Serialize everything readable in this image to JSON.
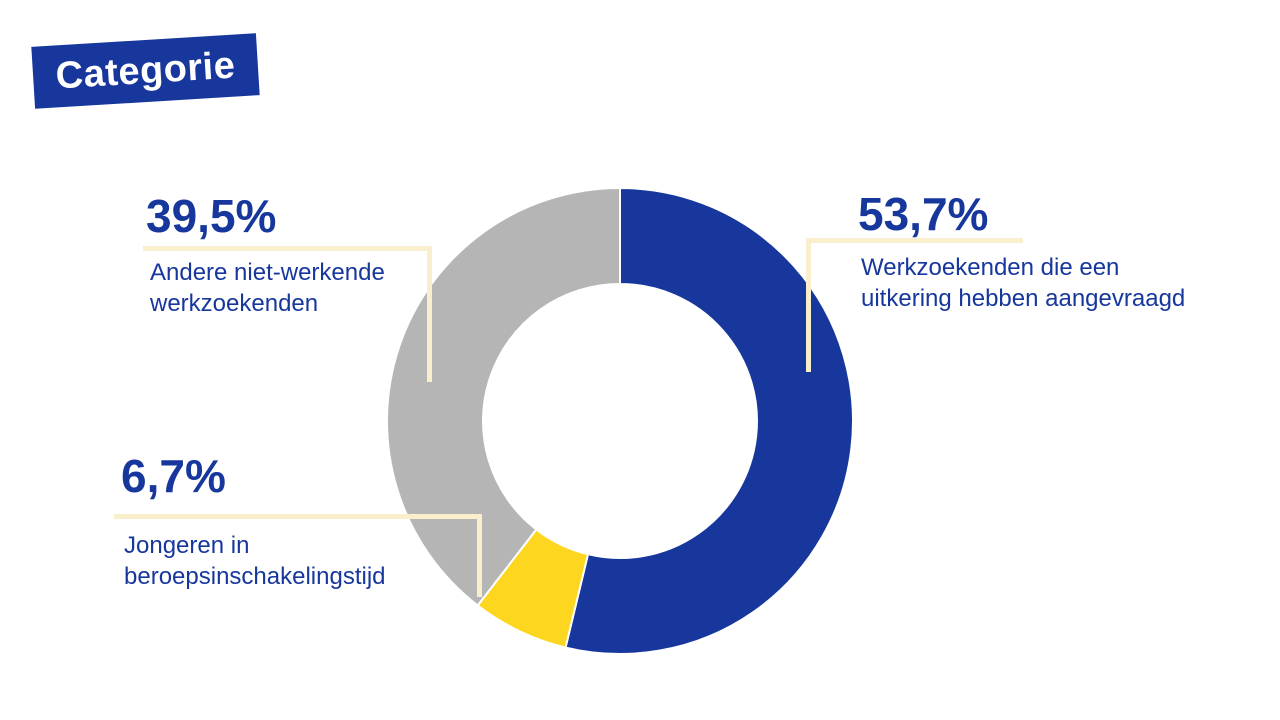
{
  "title_badge": {
    "label": "Categorie"
  },
  "colors": {
    "blue": "#17379d",
    "yellow": "#fdd71f",
    "gray": "#b5b5b5",
    "cream": "#faefcd",
    "text_blue": "#17379d",
    "badge_text": "#ffffff",
    "background": "#ffffff"
  },
  "callouts": [
    {
      "pct": "53,7%",
      "line1": "Werkzoekenden die een",
      "line2": "uitkering hebben aangevraagd"
    },
    {
      "pct": "39,5%",
      "line1": "Andere niet-werkende",
      "line2": "werkzoekenden"
    },
    {
      "pct": "6,7%",
      "line1": "Jongeren in",
      "line2": "beroepsinschakelingstijd"
    }
  ],
  "chart_data": {
    "type": "pie",
    "subtype": "donut",
    "title": "Categorie",
    "start_angle_deg": 0,
    "direction": "clockwise",
    "inner_to_outer_ratio": 0.59,
    "legend_position": "callout-labels",
    "slices": [
      {
        "label": "Werkzoekenden die een uitkering hebben aangevraagd",
        "value": 53.7,
        "display": "53,7%",
        "color": "#17379d"
      },
      {
        "label": "Jongeren in beroepsinschakelingstijd",
        "value": 6.7,
        "display": "6,7%",
        "color": "#fdd71f"
      },
      {
        "label": "Andere niet-werkende werkzoekenden",
        "value": 39.5,
        "display": "39,5%",
        "color": "#b5b5b5"
      }
    ]
  }
}
